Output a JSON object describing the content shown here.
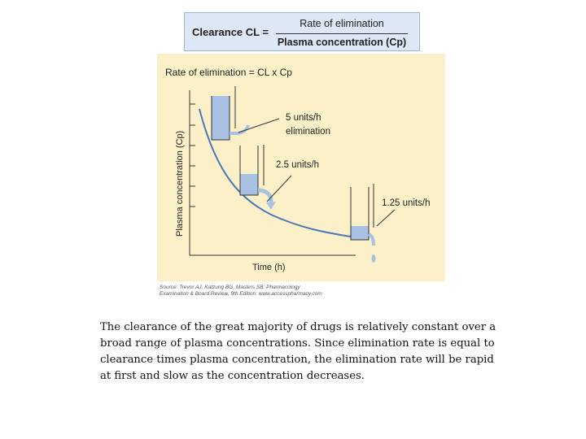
{
  "formula": {
    "lhs": "Clearance CL =",
    "numerator": "Rate of elimination",
    "denominator": "Plasma concentration (Cp)"
  },
  "diagram": {
    "title": "Rate of elimination = CL x Cp",
    "y_axis_label": "Plasma concentration (Cp)",
    "x_axis_label": "Time (h)",
    "labels": {
      "first": "5 units/h",
      "first_sub": "elimination",
      "second": "2.5 units/h",
      "third": "1.25 units/h"
    },
    "colors": {
      "background": "#fbf0c8",
      "water": "#a9c2e4",
      "curve": "#4a78b8"
    }
  },
  "source": "Source: Trevor AJ, Katzung BG, Masters SB: Pharmacology\nExamination & Board Review, 9th Edition: www.accesspharmacy.com",
  "caption": "The clearance of the great majority of drugs is relatively constant over a broad range of plasma concentrations. Since elimination rate is equal to clearance times plasma concentration, the elimination rate will be rapid at first and slow as the concentration decreases."
}
